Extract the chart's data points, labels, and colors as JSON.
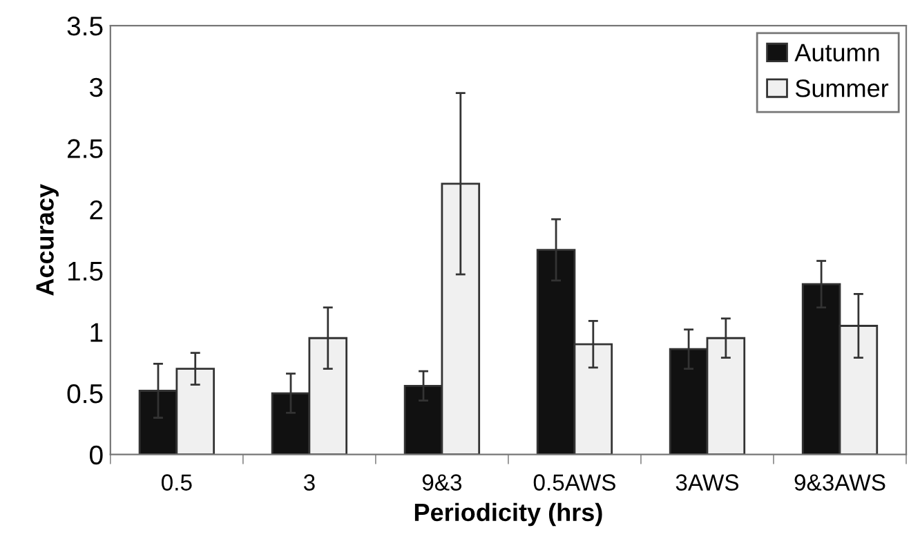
{
  "chart_data": {
    "type": "bar",
    "xlabel": "Periodicity (hrs)",
    "ylabel": "Accuracy",
    "categories": [
      "0.5",
      "3",
      "9&3",
      "0.5AWS",
      "3AWS",
      "9&3AWS"
    ],
    "series": [
      {
        "name": "Autumn",
        "color": "#111111",
        "values": [
          0.52,
          0.5,
          0.56,
          1.67,
          0.86,
          1.39
        ],
        "errors": [
          0.22,
          0.16,
          0.12,
          0.25,
          0.16,
          0.19
        ]
      },
      {
        "name": "Summer",
        "color": "#f0f0f0",
        "values": [
          0.7,
          0.95,
          2.21,
          0.9,
          0.95,
          1.05
        ],
        "errors": [
          0.13,
          0.25,
          0.74,
          0.19,
          0.16,
          0.26
        ]
      }
    ],
    "ylim": [
      0,
      3.5
    ],
    "yticks": [
      0,
      0.5,
      1,
      1.5,
      2,
      2.5,
      3,
      3.5
    ],
    "grid": false,
    "legend": "top right"
  }
}
